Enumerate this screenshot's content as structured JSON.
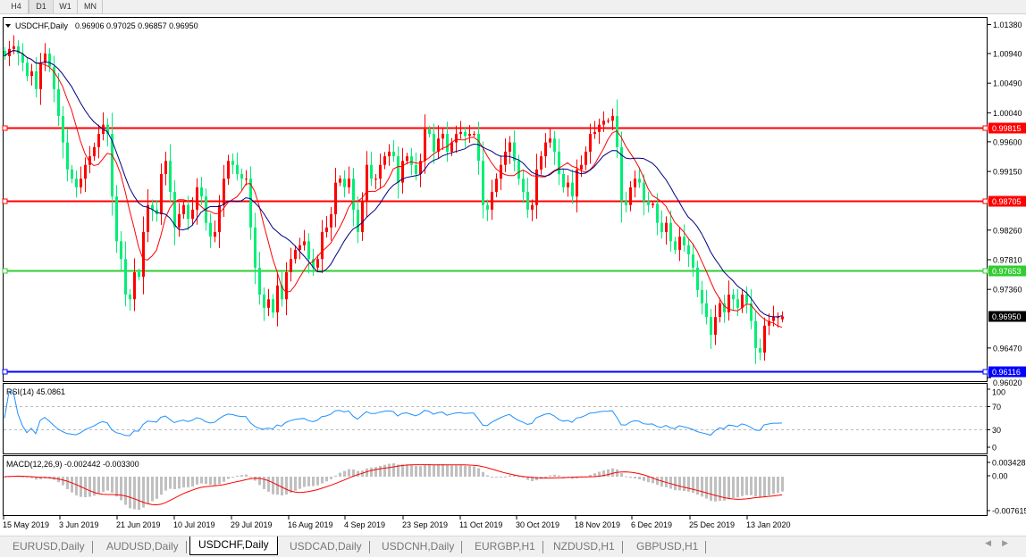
{
  "toolbar": {
    "timeframes": [
      "H4",
      "D1",
      "W1",
      "MN"
    ],
    "active": "D1"
  },
  "chart": {
    "title": "USDCHF,Daily",
    "ohlc": "0.96906 0.97025 0.96857 0.96950",
    "last_price": "0.96950",
    "price_ticks": [
      "1.01380",
      "1.00940",
      "1.00490",
      "1.00040",
      "0.99600",
      "0.99150",
      "0.98260",
      "0.97810",
      "0.97360",
      "0.96470",
      "0.96020"
    ],
    "hlines": [
      {
        "price": "0.99815",
        "color": "#ff0000"
      },
      {
        "price": "0.98705",
        "color": "#ff0000"
      },
      {
        "price": "0.97653",
        "color": "#32cd32"
      },
      {
        "price": "0.96116",
        "color": "#0000ff"
      }
    ],
    "colors": {
      "up": "#ff0000",
      "down": "#00ee76",
      "ma_fast": "#ff0000",
      "ma_slow": "#000080"
    },
    "date_ticks": [
      "15 May 2019",
      "3 Jun 2019",
      "21 Jun 2019",
      "10 Jul 2019",
      "29 Jul 2019",
      "16 Aug 2019",
      "4 Sep 2019",
      "23 Sep 2019",
      "11 Oct 2019",
      "30 Oct 2019",
      "18 Nov 2019",
      "6 Dec 2019",
      "25 Dec 2019",
      "13 Jan 2020"
    ]
  },
  "rsi": {
    "label": "RSI(14) 45.0861",
    "ticks": [
      "100",
      "70",
      "30",
      "0"
    ],
    "color": "#1e90ff"
  },
  "macd": {
    "label": "MACD(12,26,9) -0.002442 -0.003300",
    "ticks": [
      "0.003428",
      "0.00",
      "-0.007615"
    ],
    "hist_color": "#c0c0c0",
    "signal_color": "#ff0000"
  },
  "chart_data": {
    "type": "candlestick",
    "symbol": "USDCHF",
    "period": "Daily",
    "ylim": [
      0.9602,
      1.0138
    ],
    "last_bar": {
      "open": 0.96906,
      "high": 0.97025,
      "low": 0.96857,
      "close": 0.9695
    },
    "closes": [
      1.009,
      1.0101,
      1.0105,
      1.0094,
      1.008,
      1.006,
      1.0067,
      1.004,
      1.008,
      1.0094,
      1.0074,
      1.004,
      0.9999,
      0.9959,
      0.9918,
      0.9904,
      0.9891,
      0.9904,
      0.9925,
      0.9938,
      0.9952,
      0.9972,
      0.9986,
      0.9972,
      0.9877,
      0.9809,
      0.9782,
      0.9728,
      0.9721,
      0.9762,
      0.9755,
      0.9823,
      0.9864,
      0.9857,
      0.985,
      0.9911,
      0.9931,
      0.9884,
      0.983,
      0.985,
      0.9864,
      0.9843,
      0.9857,
      0.9891,
      0.9877,
      0.9837,
      0.9816,
      0.9823,
      0.9864,
      0.9904,
      0.9931,
      0.9925,
      0.9911,
      0.9904,
      0.9904,
      0.983,
      0.9769,
      0.9728,
      0.9708,
      0.9721,
      0.9701,
      0.9742,
      0.9721,
      0.9762,
      0.9782,
      0.9796,
      0.9803,
      0.9809,
      0.9782,
      0.9769,
      0.9782,
      0.9823,
      0.983,
      0.985,
      0.9898,
      0.9904,
      0.9891,
      0.9904,
      0.9857,
      0.9823,
      0.987,
      0.9925,
      0.9904,
      0.9904,
      0.9925,
      0.9938,
      0.9945,
      0.9938,
      0.9898,
      0.9931,
      0.9938,
      0.9925,
      0.9911,
      0.9931,
      0.9979,
      0.9972,
      0.9945,
      0.9965,
      0.9972,
      0.9945,
      0.9959,
      0.9972,
      0.9975,
      0.9969,
      0.9972,
      0.9972,
      0.9931,
      0.9864,
      0.9857,
      0.9884,
      0.9904,
      0.9925,
      0.9945,
      0.9959,
      0.9931,
      0.9904,
      0.9884,
      0.9857,
      0.9864,
      0.9918,
      0.9938,
      0.9959,
      0.9965,
      0.9945,
      0.9911,
      0.9891,
      0.9898,
      0.9877,
      0.9918,
      0.9925,
      0.9945,
      0.9972,
      0.9975,
      0.9986,
      0.9992,
      0.9992,
      0.9999,
      0.9952,
      0.987,
      0.9864,
      0.9891,
      0.9904,
      0.9898,
      0.987,
      0.9864,
      0.9866,
      0.9837,
      0.9823,
      0.9837,
      0.9809,
      0.9796,
      0.9816,
      0.9803,
      0.9789,
      0.9769,
      0.9735,
      0.9715,
      0.9694,
      0.9667,
      0.9694,
      0.9715,
      0.9701,
      0.9728,
      0.9721,
      0.9708,
      0.9728,
      0.9715,
      0.9688,
      0.9647,
      0.964,
      0.9681,
      0.9688,
      0.9694,
      0.9694,
      0.9695
    ]
  },
  "tabs": [
    {
      "label": "EURUSD,Daily"
    },
    {
      "label": "AUDUSD,Daily"
    },
    {
      "label": "USDCHF,Daily",
      "active": true
    },
    {
      "label": "USDCAD,Daily"
    },
    {
      "label": "USDCNH,Daily"
    },
    {
      "label": "EURGBP,H1"
    },
    {
      "label": "NZDUSD,H1"
    },
    {
      "label": "GBPUSD,H1"
    }
  ]
}
